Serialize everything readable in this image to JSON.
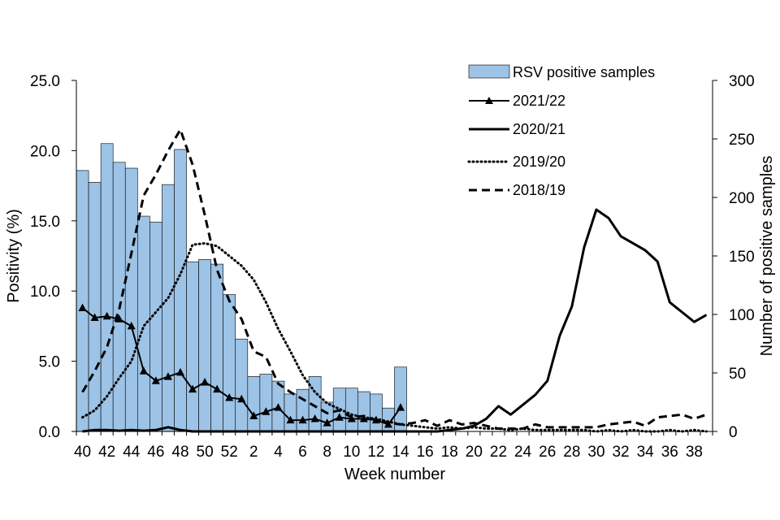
{
  "chart_data": {
    "type": "bar+line",
    "xlabel": "Week number",
    "ylabel_left": "Positivity (%)",
    "ylabel_right": "Number of positive samples",
    "ylim_left": [
      0,
      25
    ],
    "ylim_right": [
      0,
      300
    ],
    "yticks_left": [
      "0.0",
      "5.0",
      "10.0",
      "15.0",
      "20.0",
      "25.0"
    ],
    "yticks_right": [
      "0",
      "50",
      "100",
      "150",
      "200",
      "250",
      "300"
    ],
    "weeks": [
      40,
      41,
      42,
      43,
      44,
      45,
      46,
      47,
      48,
      49,
      50,
      51,
      52,
      1,
      2,
      3,
      4,
      5,
      6,
      7,
      8,
      9,
      10,
      11,
      12,
      13,
      14,
      15,
      16,
      17,
      18,
      19,
      20,
      21,
      22,
      23,
      24,
      25,
      26,
      27,
      28,
      29,
      30,
      31,
      32,
      33,
      34,
      35,
      36,
      37,
      38,
      39
    ],
    "week_tick_labels": [
      "40",
      "42",
      "44",
      "46",
      "48",
      "50",
      "52",
      "2",
      "4",
      "6",
      "8",
      "10",
      "12",
      "14",
      "16",
      "18",
      "20",
      "22",
      "24",
      "26",
      "28",
      "30",
      "32",
      "34",
      "36",
      "38"
    ],
    "grid": false,
    "legend_position": "top-right",
    "bars": {
      "name": "RSV positive samples",
      "axis": "right",
      "color": "#9dc3e6",
      "values": [
        223,
        213,
        246,
        230,
        225,
        184,
        179,
        211,
        241,
        145,
        147,
        143,
        117,
        79,
        47,
        49,
        43,
        32,
        36,
        47,
        25,
        37,
        37,
        34,
        32,
        20,
        55
      ]
    },
    "series": [
      {
        "name": "2021/22",
        "style": "line-triangle",
        "axis": "left",
        "values": [
          8.8,
          8.1,
          8.2,
          8.0,
          7.5,
          4.3,
          3.6,
          3.9,
          4.2,
          3.0,
          3.5,
          3.0,
          2.4,
          2.3,
          1.1,
          1.4,
          1.7,
          0.8,
          0.8,
          0.9,
          0.6,
          1.0,
          0.9,
          0.9,
          0.8,
          0.5,
          1.7
        ]
      },
      {
        "name": "2020/21",
        "style": "solid",
        "axis": "left",
        "values": [
          0.0,
          0.1,
          0.1,
          0.05,
          0.1,
          0.05,
          0.1,
          0.3,
          0.1,
          0.0,
          0.0,
          0.0,
          0.0,
          0.0,
          0.0,
          0.0,
          0.0,
          0.0,
          0.0,
          0.0,
          0.0,
          0.0,
          0.0,
          0.0,
          0.0,
          0.0,
          0.0,
          0.0,
          0.0,
          0.0,
          0.1,
          0.2,
          0.4,
          0.9,
          1.8,
          1.2,
          1.9,
          2.6,
          3.6,
          6.8,
          8.9,
          13.1,
          15.8,
          15.2,
          13.9,
          13.4,
          12.9,
          12.1,
          9.2,
          8.5,
          7.8,
          8.3
        ]
      },
      {
        "name": "2019/20",
        "style": "dotted",
        "axis": "left",
        "values": [
          1.0,
          1.5,
          2.5,
          3.8,
          5.0,
          7.5,
          8.5,
          9.5,
          11.2,
          13.3,
          13.4,
          13.2,
          12.5,
          11.8,
          10.8,
          9.2,
          7.3,
          5.7,
          4.0,
          2.8,
          2.0,
          1.6,
          1.2,
          1.0,
          0.9,
          0.7,
          0.5,
          0.4,
          0.3,
          0.2,
          0.3,
          0.2,
          0.3,
          0.2,
          0.2,
          0.1,
          0.2,
          0.1,
          0.1,
          0.1,
          0.1,
          0.1,
          0.0,
          0.1,
          0.0,
          0.1,
          0.0,
          0.0,
          0.1,
          0.0,
          0.1,
          0.0
        ]
      },
      {
        "name": "2018/19",
        "style": "dashed",
        "axis": "left",
        "values": [
          2.8,
          4.3,
          6.0,
          8.7,
          12.7,
          16.8,
          18.3,
          20.0,
          21.5,
          19.0,
          15.4,
          11.5,
          9.3,
          8.0,
          5.7,
          5.3,
          3.4,
          2.8,
          2.3,
          1.8,
          1.3,
          1.5,
          1.0,
          1.1,
          0.8,
          0.6,
          0.5,
          0.6,
          0.8,
          0.4,
          0.8,
          0.5,
          0.6,
          0.4,
          0.2,
          0.2,
          0.2,
          0.5,
          0.3,
          0.3,
          0.3,
          0.3,
          0.3,
          0.5,
          0.6,
          0.7,
          0.4,
          1.0,
          1.1,
          1.2,
          0.9,
          1.2
        ]
      }
    ]
  }
}
